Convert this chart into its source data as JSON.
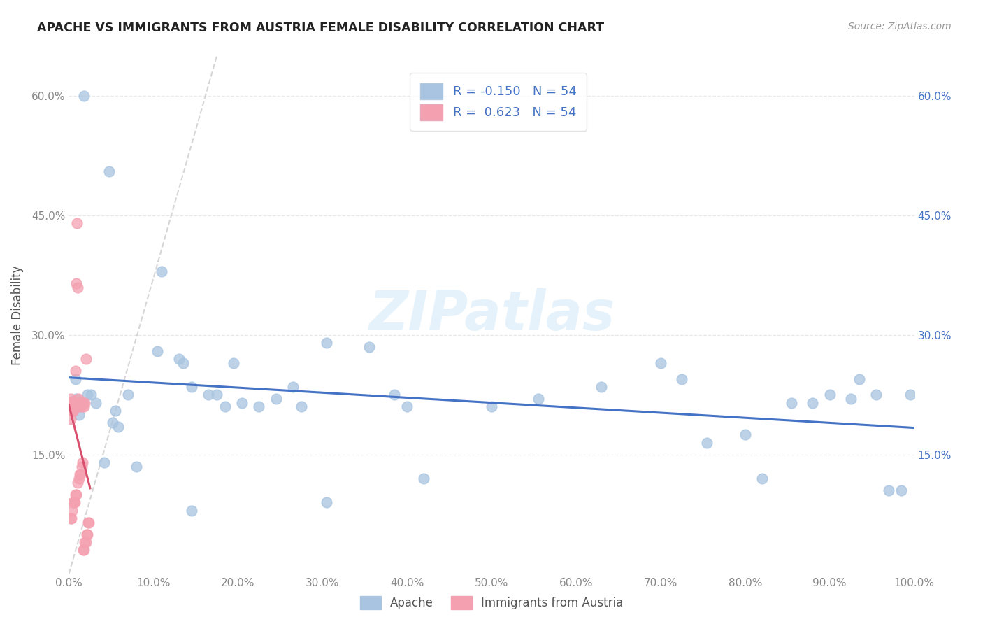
{
  "title": "APACHE VS IMMIGRANTS FROM AUSTRIA FEMALE DISABILITY CORRELATION CHART",
  "source": "Source: ZipAtlas.com",
  "ylabel": "Female Disability",
  "watermark": "ZIPatlas",
  "legend_apache_R": -0.15,
  "legend_apache_N": 54,
  "legend_austria_R": 0.623,
  "legend_austria_N": 54,
  "xlim": [
    0.0,
    1.0
  ],
  "ylim": [
    0.0,
    0.65
  ],
  "xticks": [
    0.0,
    0.1,
    0.2,
    0.3,
    0.4,
    0.5,
    0.6,
    0.7,
    0.8,
    0.9,
    1.0
  ],
  "yticks": [
    0.15,
    0.3,
    0.45,
    0.6
  ],
  "apache_color": "#a8c4e0",
  "austria_color": "#f4a0b0",
  "apache_line_color": "#4472c4",
  "austria_line_color": "#d94f6e",
  "dash_color": "#cccccc",
  "apache_x": [
    0.018,
    0.048,
    0.008,
    0.009,
    0.011,
    0.012,
    0.022,
    0.032,
    0.07,
    0.055,
    0.052,
    0.058,
    0.042,
    0.08,
    0.11,
    0.13,
    0.135,
    0.145,
    0.185,
    0.165,
    0.175,
    0.205,
    0.225,
    0.245,
    0.265,
    0.275,
    0.305,
    0.355,
    0.385,
    0.4,
    0.42,
    0.5,
    0.555,
    0.63,
    0.7,
    0.725,
    0.755,
    0.8,
    0.82,
    0.855,
    0.88,
    0.9,
    0.925,
    0.935,
    0.955,
    0.97,
    0.985,
    0.995,
    0.305,
    0.145,
    0.195,
    0.105,
    0.026,
    0.016
  ],
  "apache_y": [
    0.6,
    0.505,
    0.245,
    0.22,
    0.21,
    0.2,
    0.225,
    0.215,
    0.225,
    0.205,
    0.19,
    0.185,
    0.14,
    0.135,
    0.38,
    0.27,
    0.265,
    0.235,
    0.21,
    0.225,
    0.225,
    0.215,
    0.21,
    0.22,
    0.235,
    0.21,
    0.29,
    0.285,
    0.225,
    0.21,
    0.12,
    0.21,
    0.22,
    0.235,
    0.265,
    0.245,
    0.165,
    0.175,
    0.12,
    0.215,
    0.215,
    0.225,
    0.22,
    0.245,
    0.225,
    0.105,
    0.105,
    0.225,
    0.09,
    0.08,
    0.265,
    0.28,
    0.225,
    0.215
  ],
  "austria_x": [
    0.001,
    0.0012,
    0.0015,
    0.002,
    0.0022,
    0.0025,
    0.003,
    0.0032,
    0.0035,
    0.004,
    0.0042,
    0.0045,
    0.005,
    0.0052,
    0.006,
    0.007,
    0.008,
    0.009,
    0.0095,
    0.01,
    0.011,
    0.012,
    0.013,
    0.014,
    0.015,
    0.016,
    0.017,
    0.018,
    0.019,
    0.02,
    0.001,
    0.0013,
    0.002,
    0.003,
    0.004,
    0.005,
    0.006,
    0.007,
    0.008,
    0.009,
    0.01,
    0.012,
    0.013,
    0.014,
    0.015,
    0.016,
    0.017,
    0.018,
    0.019,
    0.02,
    0.021,
    0.022,
    0.023,
    0.024
  ],
  "austria_y": [
    0.215,
    0.215,
    0.215,
    0.215,
    0.22,
    0.195,
    0.21,
    0.205,
    0.21,
    0.215,
    0.21,
    0.205,
    0.215,
    0.205,
    0.215,
    0.215,
    0.255,
    0.365,
    0.44,
    0.36,
    0.22,
    0.215,
    0.215,
    0.21,
    0.21,
    0.215,
    0.215,
    0.21,
    0.215,
    0.27,
    0.215,
    0.21,
    0.07,
    0.07,
    0.08,
    0.09,
    0.09,
    0.09,
    0.1,
    0.1,
    0.115,
    0.12,
    0.125,
    0.125,
    0.135,
    0.14,
    0.03,
    0.03,
    0.04,
    0.04,
    0.05,
    0.05,
    0.065,
    0.065
  ]
}
